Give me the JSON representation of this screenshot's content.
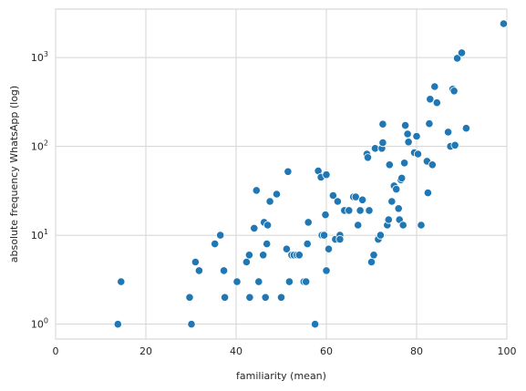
{
  "chart_data": {
    "type": "scatter",
    "xlabel": "familiarity (mean)",
    "ylabel": "absolute frequency WhatsApp (log)",
    "xlim": [
      0,
      100
    ],
    "ylim": [
      0.68,
      3500
    ],
    "yscale": "log",
    "grid": true,
    "marker_color": "#1f77b4",
    "x_ticks": [
      {
        "value": 0,
        "label": "0"
      },
      {
        "value": 20,
        "label": "20"
      },
      {
        "value": 40,
        "label": "40"
      },
      {
        "value": 60,
        "label": "60"
      },
      {
        "value": 80,
        "label": "80"
      },
      {
        "value": 100,
        "label": "100"
      }
    ],
    "y_ticks": [
      {
        "value": 1,
        "base": "10",
        "exp": "0"
      },
      {
        "value": 10,
        "base": "10",
        "exp": "1"
      },
      {
        "value": 100,
        "base": "10",
        "exp": "2"
      },
      {
        "value": 1000,
        "base": "10",
        "exp": "3"
      }
    ],
    "points": [
      {
        "x": 13.8,
        "y": 1
      },
      {
        "x": 14.5,
        "y": 3
      },
      {
        "x": 29.7,
        "y": 2
      },
      {
        "x": 30.1,
        "y": 1
      },
      {
        "x": 31.0,
        "y": 5
      },
      {
        "x": 31.8,
        "y": 4
      },
      {
        "x": 35.3,
        "y": 8
      },
      {
        "x": 36.5,
        "y": 10
      },
      {
        "x": 37.3,
        "y": 4
      },
      {
        "x": 37.5,
        "y": 2
      },
      {
        "x": 40.2,
        "y": 3
      },
      {
        "x": 42.3,
        "y": 5
      },
      {
        "x": 42.9,
        "y": 6
      },
      {
        "x": 43.0,
        "y": 2
      },
      {
        "x": 44.0,
        "y": 12
      },
      {
        "x": 44.5,
        "y": 32
      },
      {
        "x": 45.0,
        "y": 3
      },
      {
        "x": 46.0,
        "y": 6
      },
      {
        "x": 46.2,
        "y": 14
      },
      {
        "x": 46.5,
        "y": 2
      },
      {
        "x": 46.8,
        "y": 8
      },
      {
        "x": 47.0,
        "y": 13
      },
      {
        "x": 47.5,
        "y": 24
      },
      {
        "x": 49.0,
        "y": 29
      },
      {
        "x": 50.0,
        "y": 2
      },
      {
        "x": 51.2,
        "y": 7
      },
      {
        "x": 51.5,
        "y": 52
      },
      {
        "x": 51.8,
        "y": 3
      },
      {
        "x": 52.3,
        "y": 6
      },
      {
        "x": 52.8,
        "y": 6
      },
      {
        "x": 53.5,
        "y": 6
      },
      {
        "x": 54.0,
        "y": 6
      },
      {
        "x": 55.0,
        "y": 3
      },
      {
        "x": 55.5,
        "y": 3
      },
      {
        "x": 55.8,
        "y": 8
      },
      {
        "x": 56.0,
        "y": 14
      },
      {
        "x": 57.5,
        "y": 1
      },
      {
        "x": 58.2,
        "y": 53
      },
      {
        "x": 58.8,
        "y": 45
      },
      {
        "x": 59.0,
        "y": 10
      },
      {
        "x": 59.5,
        "y": 10
      },
      {
        "x": 59.8,
        "y": 17
      },
      {
        "x": 60.0,
        "y": 4
      },
      {
        "x": 60.0,
        "y": 48
      },
      {
        "x": 60.5,
        "y": 7
      },
      {
        "x": 61.5,
        "y": 28
      },
      {
        "x": 62.0,
        "y": 9
      },
      {
        "x": 62.5,
        "y": 24
      },
      {
        "x": 63.0,
        "y": 10
      },
      {
        "x": 63.0,
        "y": 9
      },
      {
        "x": 64.0,
        "y": 19
      },
      {
        "x": 65.0,
        "y": 19
      },
      {
        "x": 66.0,
        "y": 27
      },
      {
        "x": 66.5,
        "y": 27
      },
      {
        "x": 67.0,
        "y": 13
      },
      {
        "x": 67.5,
        "y": 19
      },
      {
        "x": 68.0,
        "y": 25
      },
      {
        "x": 69.0,
        "y": 82
      },
      {
        "x": 69.2,
        "y": 75
      },
      {
        "x": 69.5,
        "y": 19
      },
      {
        "x": 70.0,
        "y": 5
      },
      {
        "x": 70.5,
        "y": 6
      },
      {
        "x": 70.8,
        "y": 95
      },
      {
        "x": 71.5,
        "y": 9
      },
      {
        "x": 72.0,
        "y": 10
      },
      {
        "x": 72.3,
        "y": 95
      },
      {
        "x": 72.5,
        "y": 110
      },
      {
        "x": 72.5,
        "y": 178
      },
      {
        "x": 73.5,
        "y": 13
      },
      {
        "x": 73.8,
        "y": 15
      },
      {
        "x": 74.0,
        "y": 62
      },
      {
        "x": 74.5,
        "y": 24
      },
      {
        "x": 75.0,
        "y": 36
      },
      {
        "x": 75.5,
        "y": 33
      },
      {
        "x": 76.0,
        "y": 20
      },
      {
        "x": 76.2,
        "y": 15
      },
      {
        "x": 76.5,
        "y": 42
      },
      {
        "x": 76.7,
        "y": 44
      },
      {
        "x": 77.0,
        "y": 13
      },
      {
        "x": 77.3,
        "y": 65
      },
      {
        "x": 77.5,
        "y": 172
      },
      {
        "x": 78.0,
        "y": 138
      },
      {
        "x": 78.2,
        "y": 112
      },
      {
        "x": 79.5,
        "y": 85
      },
      {
        "x": 80.0,
        "y": 130
      },
      {
        "x": 80.3,
        "y": 82
      },
      {
        "x": 81.0,
        "y": 13
      },
      {
        "x": 82.3,
        "y": 68
      },
      {
        "x": 82.5,
        "y": 30
      },
      {
        "x": 82.8,
        "y": 180
      },
      {
        "x": 83.0,
        "y": 340
      },
      {
        "x": 83.5,
        "y": 62
      },
      {
        "x": 84.0,
        "y": 470
      },
      {
        "x": 84.5,
        "y": 310
      },
      {
        "x": 87.0,
        "y": 145
      },
      {
        "x": 87.5,
        "y": 100
      },
      {
        "x": 88.0,
        "y": 440
      },
      {
        "x": 88.3,
        "y": 420
      },
      {
        "x": 88.5,
        "y": 103
      },
      {
        "x": 89.0,
        "y": 980
      },
      {
        "x": 90.0,
        "y": 1130
      },
      {
        "x": 91.0,
        "y": 160
      },
      {
        "x": 99.3,
        "y": 2400
      }
    ]
  }
}
